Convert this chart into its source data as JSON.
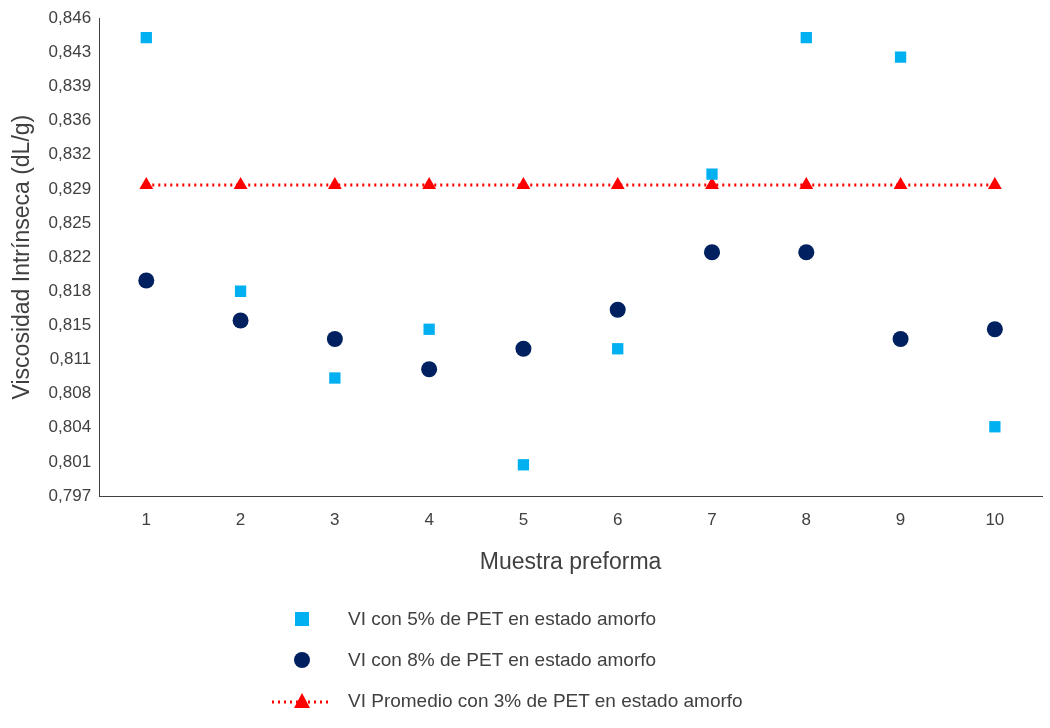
{
  "chart_data": {
    "type": "scatter",
    "xlabel": "Muestra preforma",
    "ylabel": "Viscosidad Intrínseca (dL/g)",
    "categories": [
      "1",
      "2",
      "3",
      "4",
      "5",
      "6",
      "7",
      "8",
      "9",
      "10"
    ],
    "ylim": [
      0.797,
      0.846
    ],
    "yticks": [
      {
        "value": 0.797,
        "label": "0,797"
      },
      {
        "value": 0.8005,
        "label": "0,801"
      },
      {
        "value": 0.804,
        "label": "0,804"
      },
      {
        "value": 0.8075,
        "label": "0,808"
      },
      {
        "value": 0.811,
        "label": "0,811"
      },
      {
        "value": 0.8145,
        "label": "0,815"
      },
      {
        "value": 0.818,
        "label": "0,818"
      },
      {
        "value": 0.8215,
        "label": "0,822"
      },
      {
        "value": 0.825,
        "label": "0,825"
      },
      {
        "value": 0.8285,
        "label": "0,829"
      },
      {
        "value": 0.832,
        "label": "0,832"
      },
      {
        "value": 0.8355,
        "label": "0,836"
      },
      {
        "value": 0.839,
        "label": "0,839"
      },
      {
        "value": 0.8425,
        "label": "0,843"
      },
      {
        "value": 0.846,
        "label": "0,846"
      }
    ],
    "grid": false,
    "legend": "bottom",
    "series": [
      {
        "name": "VI con 5% de PET en estado amorfo",
        "color": "#00b0f0",
        "marker": "square",
        "values": [
          0.844,
          0.818,
          0.8091,
          0.8141,
          0.8002,
          0.8121,
          0.83,
          0.844,
          0.842,
          0.8041
        ]
      },
      {
        "name": "VI con 8% de PET en estado amorfo",
        "color": "#002060",
        "marker": "circle",
        "values": [
          0.8191,
          0.815,
          0.8131,
          0.81,
          0.8121,
          0.8161,
          0.822,
          0.822,
          0.8131,
          0.8141
        ]
      },
      {
        "name": "VI Promedio con 3% de PET en estado amorfo",
        "type": "line",
        "line_style": "dotted",
        "color": "#ff0000",
        "marker": "triangle",
        "values": [
          0.8289,
          0.8289,
          0.8289,
          0.8289,
          0.8289,
          0.8289,
          0.8289,
          0.8289,
          0.8289,
          0.8289
        ]
      }
    ]
  }
}
